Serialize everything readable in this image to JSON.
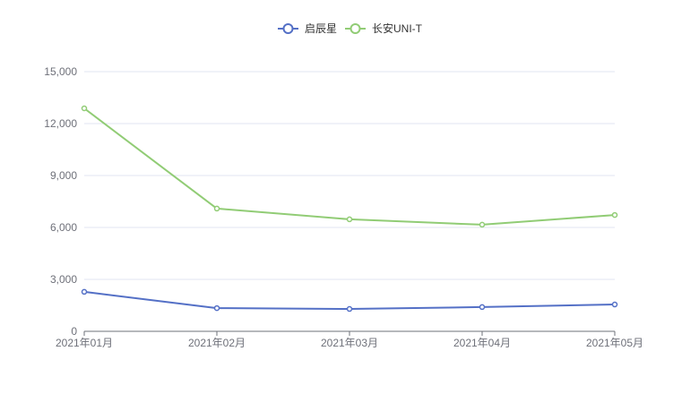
{
  "chart_data": {
    "type": "line",
    "categories": [
      "2021年01月",
      "2021年02月",
      "2021年03月",
      "2021年04月",
      "2021年05月"
    ],
    "series": [
      {
        "name": "启辰星",
        "values": [
          2280,
          1340,
          1290,
          1400,
          1550
        ],
        "color": "#5470c6"
      },
      {
        "name": "长安UNI-T",
        "values": [
          12880,
          7090,
          6470,
          6160,
          6720
        ],
        "color": "#91cc75"
      }
    ],
    "ylim": [
      0,
      15000
    ],
    "yticks": [
      0,
      3000,
      6000,
      9000,
      12000,
      15000
    ],
    "ytick_labels": [
      "0",
      "3,000",
      "6,000",
      "9,000",
      "12,000",
      "15,000"
    ],
    "grid": true,
    "legend_position": "top-center"
  }
}
